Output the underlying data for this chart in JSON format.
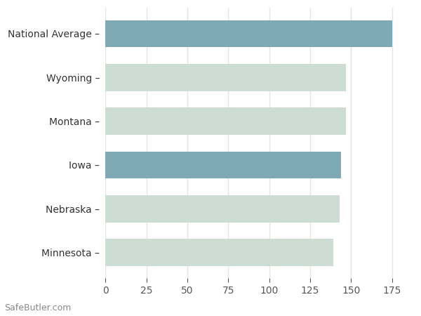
{
  "categories": [
    "Minnesota",
    "Nebraska",
    "Iowa",
    "Montana",
    "Wyoming",
    "National Average"
  ],
  "values": [
    139,
    143,
    144,
    147,
    147,
    175
  ],
  "bar_colors": [
    "#cdddd4",
    "#cdddd4",
    "#7faab5",
    "#cdddd4",
    "#cdddd4",
    "#7faab5"
  ],
  "xlim": [
    0,
    188
  ],
  "xticks": [
    0,
    25,
    50,
    75,
    100,
    125,
    150,
    175
  ],
  "grid_color": "#e0e8e4",
  "background_color": "#ffffff",
  "watermark": "SafeButler.com",
  "bar_height": 0.62,
  "tick_label_fontsize": 10,
  "watermark_fontsize": 9
}
